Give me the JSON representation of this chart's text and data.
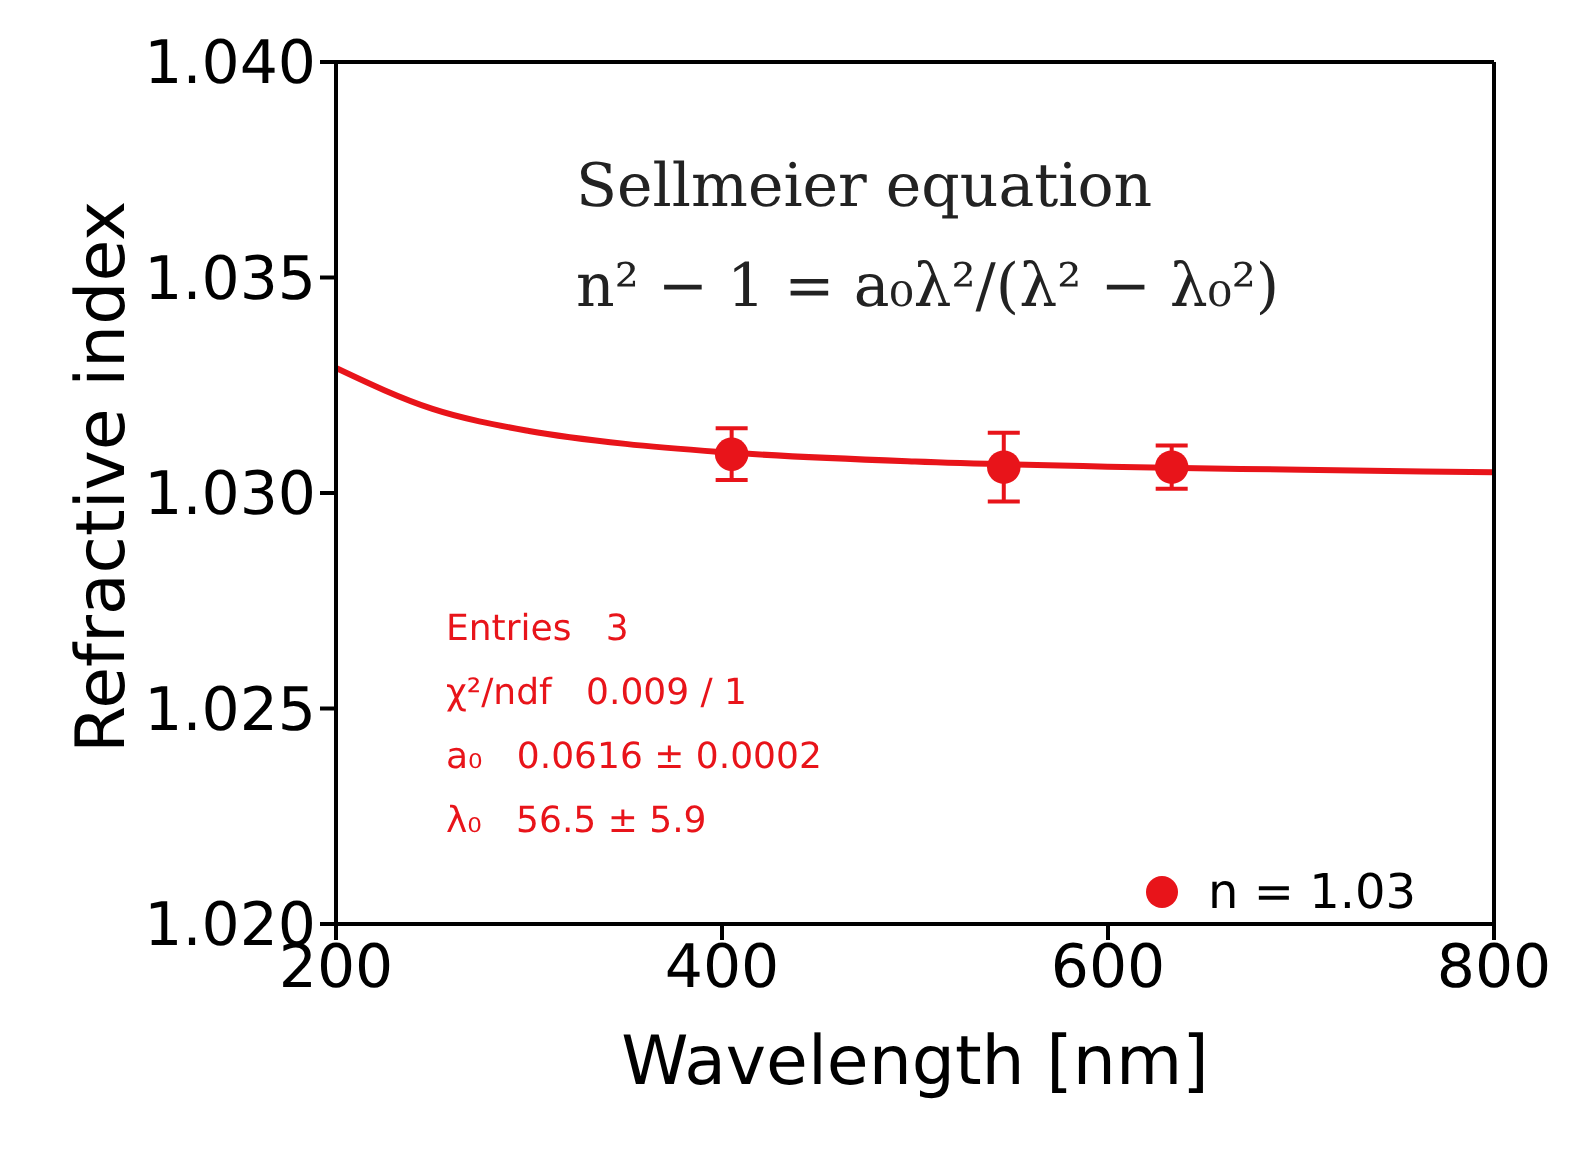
{
  "chart_data": {
    "type": "scatter",
    "xlabel": "Wavelength [nm]",
    "ylabel": "Refractive index",
    "xlim": [
      200,
      800
    ],
    "xticks": [
      200,
      400,
      600,
      800
    ],
    "ylim": [
      1.02,
      1.04
    ],
    "yticks": [
      {
        "value": 1.02,
        "label": "1.020"
      },
      {
        "value": 1.025,
        "label": "1.025"
      },
      {
        "value": 1.03,
        "label": "1.030"
      },
      {
        "value": 1.035,
        "label": "1.035"
      },
      {
        "value": 1.04,
        "label": "1.040"
      }
    ],
    "legend": "bottom right",
    "annotations": [
      "Sellmeier equation",
      "n² − 1 = a₀λ²/(λ² − λ₀²)",
      "Entries   3",
      "χ²/ndf   0.009 / 1",
      "a₀   0.0616 ± 0.0002",
      "λ₀   56.5 ± 5.9"
    ],
    "series": [
      {
        "name": "n = 1.03",
        "marker": "circle",
        "color": "#e8141a",
        "x": [
          405,
          546,
          633
        ],
        "values": [
          1.0309,
          1.0306,
          1.0306
        ],
        "errors": [
          0.0006,
          0.0008,
          0.0005
        ]
      },
      {
        "type": "line",
        "marker": "none",
        "color": "#e8141a",
        "x": [
          200,
          250,
          300,
          350,
          400,
          500,
          600,
          700,
          800
        ],
        "values": [
          1.0329,
          1.03195,
          1.03144,
          1.03114,
          1.03095,
          1.03073,
          1.03061,
          1.03054,
          1.03048
        ]
      }
    ]
  }
}
